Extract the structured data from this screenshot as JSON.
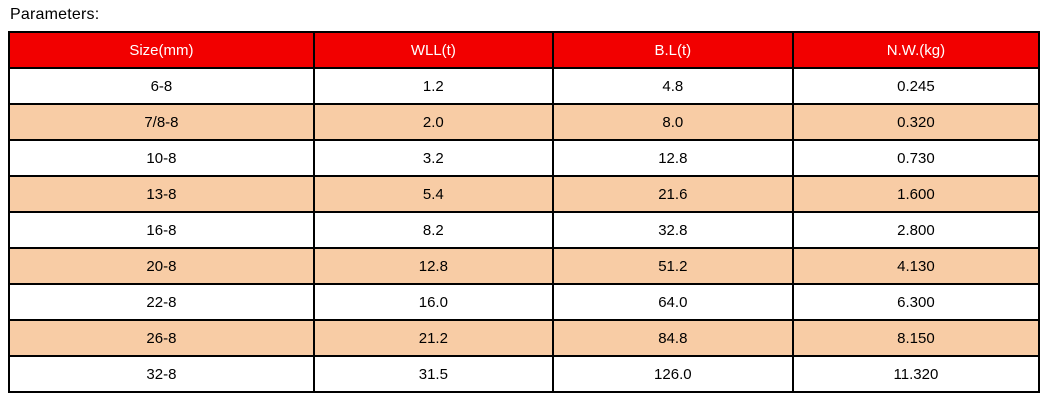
{
  "page": {
    "title": "Parameters:"
  },
  "table": {
    "headers": [
      "Size(mm)",
      "WLL(t)",
      "B.L(t)",
      "N.W.(kg)"
    ],
    "rows": [
      [
        "6-8",
        "1.2",
        "4.8",
        "0.245"
      ],
      [
        "7/8-8",
        "2.0",
        "8.0",
        "0.320"
      ],
      [
        "10-8",
        "3.2",
        "12.8",
        "0.730"
      ],
      [
        "13-8",
        "5.4",
        "21.6",
        "1.600"
      ],
      [
        "16-8",
        "8.2",
        "32.8",
        "2.800"
      ],
      [
        "20-8",
        "12.8",
        "51.2",
        "4.130"
      ],
      [
        "22-8",
        "16.0",
        "64.0",
        "6.300"
      ],
      [
        "26-8",
        "21.2",
        "84.8",
        "8.150"
      ],
      [
        "32-8",
        "31.5",
        "126.0",
        "11.320"
      ]
    ],
    "colors": {
      "header_bg": "#F20000",
      "header_text": "#FFFFFF",
      "row_bg": "#FFFFFF",
      "row_alt_bg": "#F8CCA5",
      "border": "#000000"
    }
  }
}
